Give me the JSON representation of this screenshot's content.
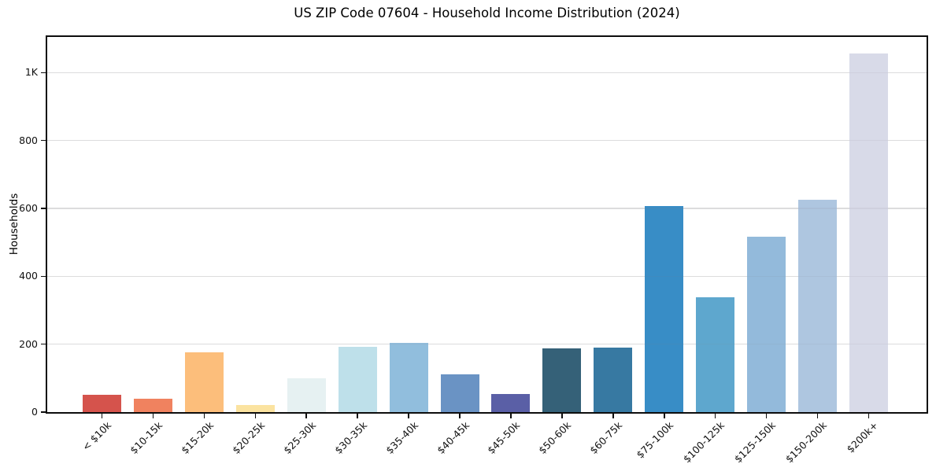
{
  "title": "US ZIP Code 07604 - Household Income Distribution (2024)",
  "chart_data": {
    "type": "bar",
    "title": "US ZIP Code 07604 - Household Income Distribution (2024)",
    "xlabel": "",
    "ylabel": "Households",
    "categories": [
      "< $10k",
      "$10-15k",
      "$15-20k",
      "$20-25k",
      "$25-30k",
      "$30-35k",
      "$35-40k",
      "$40-45k",
      "$45-50k",
      "$50-60k",
      "$60-75k",
      "$75-100k",
      "$100-125k",
      "$125-150k",
      "$150-200k",
      "$200k+"
    ],
    "values": [
      51,
      40,
      176,
      22,
      99,
      192,
      204,
      112,
      53,
      187,
      191,
      608,
      338,
      517,
      625,
      1056
    ],
    "bar_colors": [
      "#d5534c",
      "#f0825f",
      "#fcbe7b",
      "#fbe3a0",
      "#e6f1f2",
      "#bee0ea",
      "#91bedd",
      "#6a93c4",
      "#5a5fa6",
      "#356178",
      "#3779a2",
      "#388dc6",
      "#5ea7ce",
      "#93badb",
      "#aec6e0",
      "#d8dae8"
    ],
    "ylim": [
      0,
      1105
    ],
    "yticks": {
      "values": [
        0,
        200,
        400,
        600,
        800,
        1000
      ],
      "labels": [
        "0",
        "200",
        "400",
        "600",
        "800",
        "1K"
      ]
    },
    "grid": "horizontal",
    "gridline_color": "#e7e7e7",
    "legend": "none",
    "xtick_rotation": 45,
    "spine_color": "#0d0d0d",
    "text_color": "#111111"
  }
}
